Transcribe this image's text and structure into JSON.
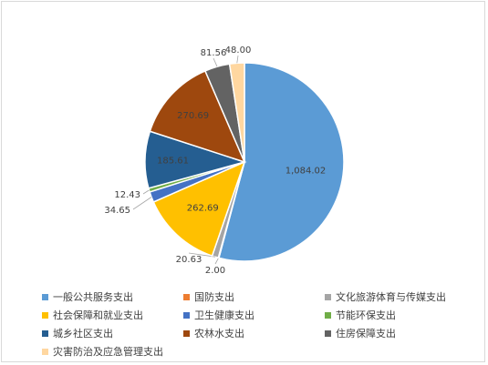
{
  "chart_data": {
    "type": "pie",
    "slices": [
      {
        "label": "一般公共服务支出",
        "value": 1084.02,
        "value_label": "1,084.02",
        "color": "#5b9bd5"
      },
      {
        "label": "国防支出",
        "value": 2.0,
        "value_label": "2.00",
        "color": "#ed7d31"
      },
      {
        "label": "文化旅游体育与传媒支出",
        "value": 20.63,
        "value_label": "20.63",
        "color": "#a5a5a5"
      },
      {
        "label": "社会保障和就业支出",
        "value": 262.69,
        "value_label": "262.69",
        "color": "#ffc000"
      },
      {
        "label": "卫生健康支出",
        "value": 34.65,
        "value_label": "34.65",
        "color": "#4472c4"
      },
      {
        "label": "节能环保支出",
        "value": 12.43,
        "value_label": "12.43",
        "color": "#70ad47"
      },
      {
        "label": "城乡社区支出",
        "value": 185.61,
        "value_label": "185.61",
        "color": "#255e91"
      },
      {
        "label": "农林水支出",
        "value": 270.69,
        "value_label": "270.69",
        "color": "#9e480e"
      },
      {
        "label": "住房保障支出",
        "value": 81.56,
        "value_label": "81.56",
        "color": "#636363"
      },
      {
        "label": "灾害防治及应急管理支出",
        "value": 48.0,
        "value_label": "48.00",
        "color": "#ffd7a0"
      }
    ],
    "legend_position": "bottom"
  }
}
